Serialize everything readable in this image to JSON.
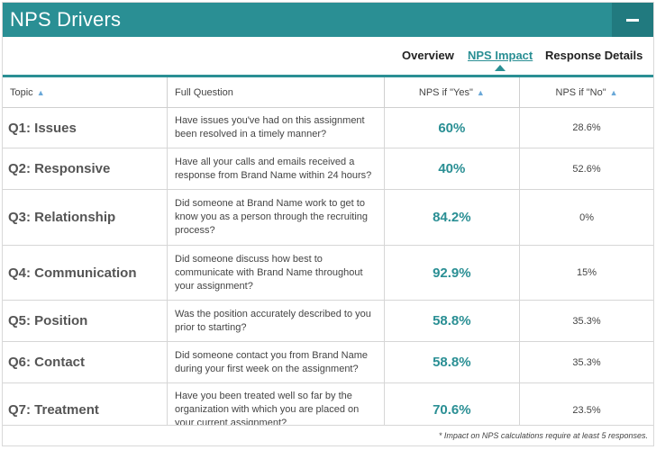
{
  "header": {
    "title": "NPS Drivers",
    "collapse_icon": "minus-icon"
  },
  "tabs": [
    {
      "label": "Overview",
      "active": false
    },
    {
      "label": "NPS Impact",
      "active": true
    },
    {
      "label": "Response Details",
      "active": false
    }
  ],
  "table": {
    "columns": [
      {
        "label": "Topic",
        "sortable": true
      },
      {
        "label": "Full Question",
        "sortable": false
      },
      {
        "label": "NPS if \"Yes\"",
        "sortable": true
      },
      {
        "label": "NPS if \"No\"",
        "sortable": true
      }
    ],
    "sort_icon": "chevron-up-icon",
    "rows": [
      {
        "topic": "Q1: Issues",
        "question": "Have issues you've had on this assignment been resolved in a timely manner?",
        "yes": "60%",
        "no": "28.6%"
      },
      {
        "topic": "Q2: Responsive",
        "question": "Have all your calls and emails received a response from Brand Name within 24 hours?",
        "yes": "40%",
        "no": "52.6%"
      },
      {
        "topic": "Q3: Relationship",
        "question": "Did someone at Brand Name work to get to know you as a person through the recruiting process?",
        "yes": "84.2%",
        "no": "0%"
      },
      {
        "topic": "Q4: Communication",
        "question": "Did someone discuss how best to communicate with Brand Name throughout your assignment?",
        "yes": "92.9%",
        "no": "15%"
      },
      {
        "topic": "Q5: Position",
        "question": "Was the position accurately described to you prior to starting?",
        "yes": "58.8%",
        "no": "35.3%"
      },
      {
        "topic": "Q6: Contact",
        "question": "Did someone contact you from Brand Name during your first week on the assignment?",
        "yes": "58.8%",
        "no": "35.3%"
      },
      {
        "topic": "Q7: Treatment",
        "question": "Have you been treated well so far by the organization with which you are placed on your current assignment?",
        "yes": "70.6%",
        "no": "23.5%"
      }
    ]
  },
  "footnote": "* Impact on NPS calculations require at least 5 responses.",
  "colors": {
    "accent": "#2a8f94",
    "accent_dark": "#217a7f"
  }
}
